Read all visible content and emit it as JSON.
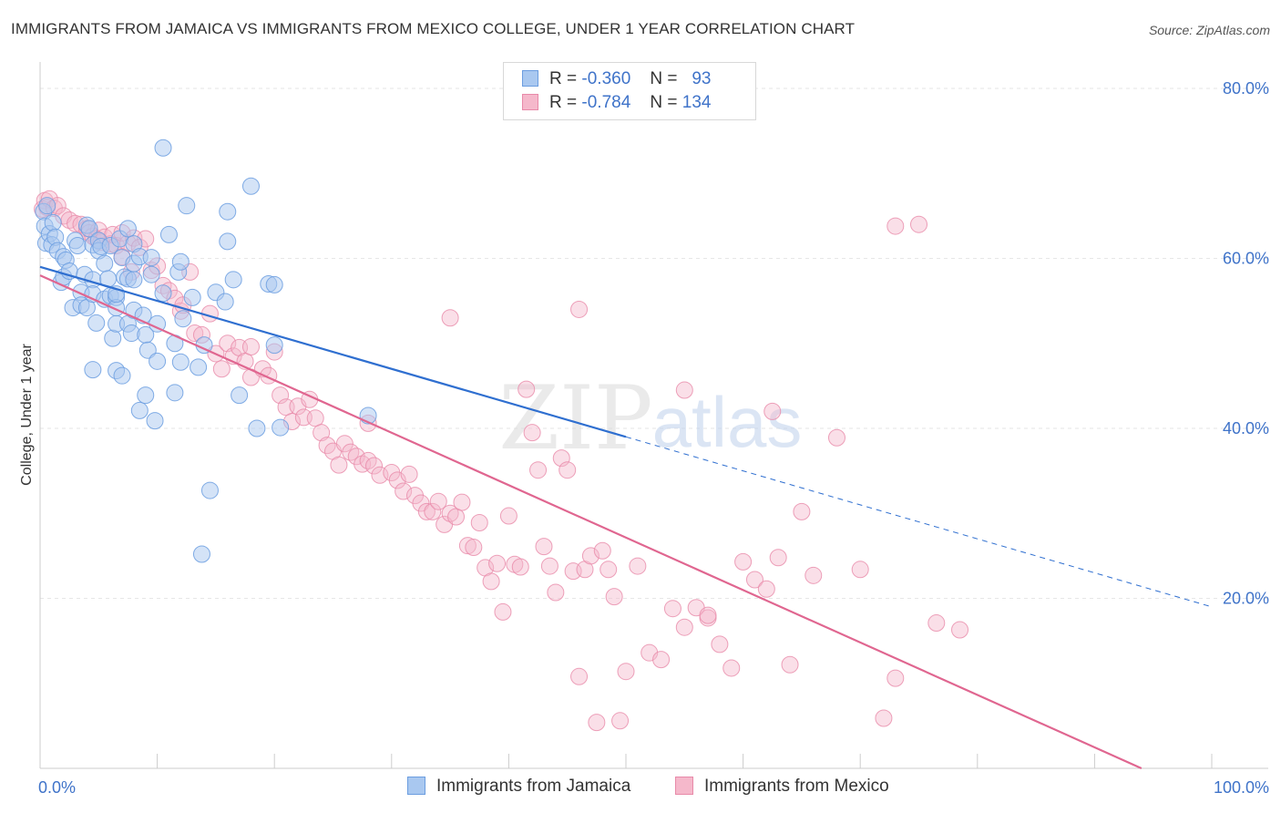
{
  "title": "IMMIGRANTS FROM JAMAICA VS IMMIGRANTS FROM MEXICO COLLEGE, UNDER 1 YEAR CORRELATION CHART",
  "source": "Source: ZipAtlas.com",
  "watermark": {
    "zip": "ZIP",
    "atlas": "atlas"
  },
  "legend": {
    "jamaica": {
      "r_label": "R =",
      "r_value": "-0.360",
      "n_label": "N =",
      "n_value": "93"
    },
    "mexico": {
      "r_label": "R =",
      "r_value": "-0.784",
      "n_label": "N =",
      "n_value": "134"
    }
  },
  "bottom_legend": {
    "jamaica": "Immigrants from Jamaica",
    "mexico": "Immigrants from Mexico"
  },
  "colors": {
    "jamaica_fill": "#a9c8f0",
    "jamaica_stroke": "#6b9de0",
    "jamaica_line": "#2f6fd0",
    "mexico_fill": "#f5b8cb",
    "mexico_stroke": "#e88aa9",
    "mexico_line": "#e06690",
    "tick_text": "#3f73c9",
    "grid": "#e6e6e6"
  },
  "chart_data": {
    "type": "scatter",
    "title": "IMMIGRANTS FROM JAMAICA VS IMMIGRANTS FROM MEXICO COLLEGE, UNDER 1 YEAR CORRELATION CHART",
    "xlabel": "",
    "ylabel": "College, Under 1 year",
    "xlim": [
      0,
      100
    ],
    "ylim": [
      0,
      80
    ],
    "x_tick_labels": [
      "0.0%",
      "100.0%"
    ],
    "y_ticks": [
      20,
      40,
      60,
      80
    ],
    "y_tick_labels": [
      "20.0%",
      "40.0%",
      "60.0%",
      "80.0%"
    ],
    "grid": true,
    "legend_position": "top-center",
    "series": [
      {
        "name": "Immigrants from Jamaica",
        "r": -0.36,
        "n": 93,
        "trend": {
          "x0": 0,
          "y0": 59.0,
          "x1": 50,
          "y1": 39.0,
          "dashed_to_x": 100,
          "dashed_to_y": 19.0
        },
        "points": [
          [
            0.3,
            65.5
          ],
          [
            0.4,
            63.8
          ],
          [
            0.5,
            61.8
          ],
          [
            0.6,
            66.2
          ],
          [
            0.8,
            62.9
          ],
          [
            1.0,
            61.6
          ],
          [
            1.1,
            64.2
          ],
          [
            1.3,
            62.5
          ],
          [
            1.5,
            60.9
          ],
          [
            1.8,
            57.2
          ],
          [
            2.0,
            60.2
          ],
          [
            2.0,
            57.8
          ],
          [
            2.2,
            59.8
          ],
          [
            2.5,
            58.5
          ],
          [
            2.8,
            54.2
          ],
          [
            3.0,
            62.1
          ],
          [
            3.2,
            61.5
          ],
          [
            3.5,
            56.0
          ],
          [
            3.5,
            54.5
          ],
          [
            3.8,
            58.1
          ],
          [
            4.0,
            63.9
          ],
          [
            4.0,
            54.2
          ],
          [
            4.2,
            63.5
          ],
          [
            4.5,
            61.6
          ],
          [
            4.5,
            57.5
          ],
          [
            4.5,
            55.8
          ],
          [
            4.5,
            46.9
          ],
          [
            4.8,
            52.4
          ],
          [
            5.0,
            62.1
          ],
          [
            5.0,
            60.9
          ],
          [
            5.2,
            61.4
          ],
          [
            5.5,
            59.4
          ],
          [
            5.5,
            55.2
          ],
          [
            5.8,
            57.6
          ],
          [
            6.0,
            61.5
          ],
          [
            6.0,
            55.6
          ],
          [
            6.2,
            50.6
          ],
          [
            6.5,
            46.8
          ],
          [
            6.5,
            55.4
          ],
          [
            6.5,
            52.3
          ],
          [
            6.5,
            54.2
          ],
          [
            6.5,
            55.8
          ],
          [
            6.8,
            62.3
          ],
          [
            7.0,
            46.2
          ],
          [
            7.0,
            60.1
          ],
          [
            7.2,
            57.8
          ],
          [
            7.5,
            63.5
          ],
          [
            7.5,
            52.3
          ],
          [
            7.5,
            57.6
          ],
          [
            7.8,
            51.2
          ],
          [
            8.0,
            53.9
          ],
          [
            8.0,
            57.5
          ],
          [
            8.0,
            59.4
          ],
          [
            8.0,
            61.7
          ],
          [
            8.5,
            42.1
          ],
          [
            8.5,
            60.2
          ],
          [
            8.8,
            53.3
          ],
          [
            9.0,
            51.0
          ],
          [
            9.0,
            43.9
          ],
          [
            9.2,
            49.2
          ],
          [
            9.5,
            58.1
          ],
          [
            9.5,
            60.1
          ],
          [
            9.8,
            40.9
          ],
          [
            10.0,
            47.9
          ],
          [
            10.0,
            52.3
          ],
          [
            10.5,
            55.9
          ],
          [
            11.0,
            62.8
          ],
          [
            11.5,
            44.2
          ],
          [
            11.5,
            50.0
          ],
          [
            11.8,
            58.4
          ],
          [
            12.0,
            47.8
          ],
          [
            12.0,
            59.6
          ],
          [
            12.2,
            52.9
          ],
          [
            12.5,
            66.2
          ],
          [
            13.0,
            55.4
          ],
          [
            13.5,
            47.2
          ],
          [
            13.8,
            25.2
          ],
          [
            14.0,
            49.8
          ],
          [
            14.5,
            32.7
          ],
          [
            15.0,
            56.0
          ],
          [
            15.8,
            54.9
          ],
          [
            16.0,
            62.0
          ],
          [
            16.0,
            65.5
          ],
          [
            16.5,
            57.5
          ],
          [
            17.0,
            43.9
          ],
          [
            18.0,
            68.5
          ],
          [
            18.5,
            40.0
          ],
          [
            19.5,
            57.0
          ],
          [
            20.0,
            56.9
          ],
          [
            20.5,
            40.1
          ],
          [
            20.0,
            49.8
          ],
          [
            28.0,
            41.5
          ],
          [
            10.5,
            73.0
          ]
        ]
      },
      {
        "name": "Immigrants from Mexico",
        "r": -0.784,
        "n": 134,
        "trend": {
          "x0": 0,
          "y0": 58.0,
          "x1": 94,
          "y1": 0.0
        },
        "points": [
          [
            0.2,
            65.8
          ],
          [
            0.4,
            66.8
          ],
          [
            0.6,
            66.0
          ],
          [
            0.8,
            67.0
          ],
          [
            1.2,
            65.9
          ],
          [
            1.5,
            66.2
          ],
          [
            2.0,
            65.0
          ],
          [
            2.5,
            64.5
          ],
          [
            3.0,
            64.1
          ],
          [
            3.5,
            64.0
          ],
          [
            4.0,
            63.5
          ],
          [
            4.2,
            63.0
          ],
          [
            4.5,
            62.6
          ],
          [
            4.8,
            62.3
          ],
          [
            5.0,
            63.3
          ],
          [
            5.2,
            61.9
          ],
          [
            5.5,
            62.5
          ],
          [
            6.0,
            61.7
          ],
          [
            6.2,
            62.8
          ],
          [
            6.5,
            61.5
          ],
          [
            7.0,
            63.0
          ],
          [
            7.0,
            60.2
          ],
          [
            7.5,
            61.8
          ],
          [
            7.8,
            58.4
          ],
          [
            8.0,
            62.4
          ],
          [
            8.5,
            61.3
          ],
          [
            9.0,
            62.3
          ],
          [
            9.5,
            58.6
          ],
          [
            10.0,
            59.1
          ],
          [
            10.5,
            56.8
          ],
          [
            11.0,
            56.2
          ],
          [
            11.5,
            55.3
          ],
          [
            12.0,
            53.8
          ],
          [
            12.2,
            54.5
          ],
          [
            12.8,
            58.4
          ],
          [
            13.2,
            51.2
          ],
          [
            13.8,
            51.0
          ],
          [
            14.5,
            53.5
          ],
          [
            15.0,
            48.8
          ],
          [
            15.5,
            47.0
          ],
          [
            16.0,
            50.0
          ],
          [
            16.5,
            48.5
          ],
          [
            17.0,
            49.5
          ],
          [
            17.5,
            47.9
          ],
          [
            18.0,
            46.0
          ],
          [
            18.0,
            49.6
          ],
          [
            19.0,
            47.0
          ],
          [
            19.5,
            46.2
          ],
          [
            20.0,
            49.0
          ],
          [
            20.5,
            43.9
          ],
          [
            21.0,
            42.5
          ],
          [
            21.5,
            40.8
          ],
          [
            22.0,
            42.6
          ],
          [
            22.5,
            41.3
          ],
          [
            23.0,
            43.4
          ],
          [
            23.5,
            41.2
          ],
          [
            24.0,
            39.5
          ],
          [
            24.5,
            38.0
          ],
          [
            25.0,
            37.3
          ],
          [
            25.5,
            35.7
          ],
          [
            26.0,
            38.2
          ],
          [
            26.5,
            37.2
          ],
          [
            27.0,
            36.7
          ],
          [
            27.5,
            35.8
          ],
          [
            28.0,
            36.2
          ],
          [
            28.0,
            40.6
          ],
          [
            28.5,
            35.6
          ],
          [
            29.0,
            34.5
          ],
          [
            30.0,
            34.8
          ],
          [
            30.5,
            33.9
          ],
          [
            31.0,
            32.6
          ],
          [
            31.5,
            34.6
          ],
          [
            32.0,
            32.1
          ],
          [
            32.5,
            31.2
          ],
          [
            33.0,
            30.2
          ],
          [
            33.5,
            30.2
          ],
          [
            34.0,
            31.4
          ],
          [
            34.5,
            28.7
          ],
          [
            35.0,
            30.0
          ],
          [
            35.5,
            29.6
          ],
          [
            36.0,
            31.3
          ],
          [
            36.5,
            26.2
          ],
          [
            37.0,
            26.0
          ],
          [
            37.5,
            28.9
          ],
          [
            38.0,
            23.6
          ],
          [
            38.5,
            22.0
          ],
          [
            39.0,
            24.1
          ],
          [
            39.5,
            18.4
          ],
          [
            40.0,
            29.7
          ],
          [
            40.5,
            24.0
          ],
          [
            41.0,
            23.7
          ],
          [
            41.5,
            44.6
          ],
          [
            42.0,
            39.5
          ],
          [
            42.5,
            35.1
          ],
          [
            43.0,
            26.1
          ],
          [
            43.5,
            23.8
          ],
          [
            44.0,
            20.7
          ],
          [
            44.5,
            36.5
          ],
          [
            45.0,
            35.1
          ],
          [
            45.5,
            23.2
          ],
          [
            46.0,
            10.8
          ],
          [
            46.5,
            23.4
          ],
          [
            47.0,
            25.0
          ],
          [
            47.5,
            5.4
          ],
          [
            48.0,
            25.6
          ],
          [
            48.5,
            23.4
          ],
          [
            49.0,
            20.2
          ],
          [
            49.5,
            5.6
          ],
          [
            50.0,
            11.4
          ],
          [
            51.0,
            23.8
          ],
          [
            52.0,
            13.6
          ],
          [
            53.0,
            12.8
          ],
          [
            54.0,
            18.8
          ],
          [
            55.0,
            16.6
          ],
          [
            56.0,
            18.9
          ],
          [
            57.0,
            17.7
          ],
          [
            58.0,
            14.6
          ],
          [
            59.0,
            11.8
          ],
          [
            60.0,
            24.3
          ],
          [
            61.0,
            22.2
          ],
          [
            62.0,
            21.1
          ],
          [
            63.0,
            24.8
          ],
          [
            64.0,
            12.2
          ],
          [
            65.0,
            30.2
          ],
          [
            66.0,
            22.7
          ],
          [
            68.0,
            38.9
          ],
          [
            70.0,
            23.4
          ],
          [
            72.0,
            5.9
          ],
          [
            73.0,
            10.6
          ],
          [
            76.5,
            17.1
          ],
          [
            35.0,
            53.0
          ],
          [
            62.5,
            42.0
          ],
          [
            73.0,
            63.8
          ],
          [
            75.0,
            64.0
          ],
          [
            55.0,
            44.5
          ],
          [
            46.0,
            54.0
          ],
          [
            57.0,
            18.0
          ],
          [
            78.5,
            16.3
          ]
        ]
      }
    ]
  }
}
